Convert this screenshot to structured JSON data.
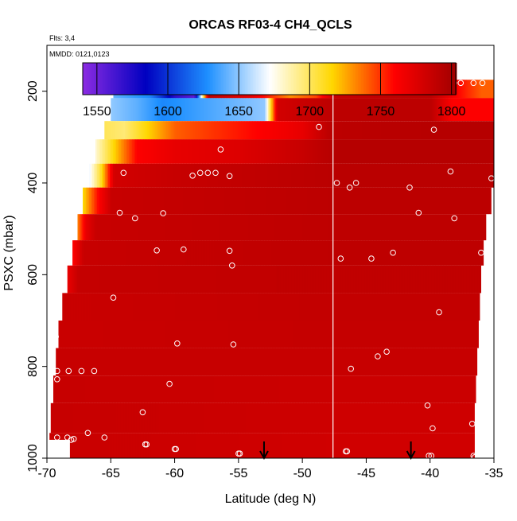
{
  "chart_data": {
    "type": "heatmap",
    "title": "ORCAS RF03-4 CH4_QCLS",
    "info_flts": "Flts: 3,4",
    "info_mmdd": "MMDD: 0121,0123",
    "xlabel": "Latitude (deg N)",
    "ylabel": "PSXC (mbar)",
    "xlim": [
      -70,
      -35
    ],
    "ylim": [
      1000,
      100
    ],
    "x_ticks": [
      -70,
      -65,
      -60,
      -55,
      -50,
      -45,
      -40,
      -35
    ],
    "x_tick_labels": [
      "-70",
      "-65",
      "-60",
      "-55",
      "-50",
      "-45",
      "-40",
      "-35"
    ],
    "y_ticks": [
      200,
      400,
      600,
      800,
      1000
    ],
    "y_tick_labels": [
      "200",
      "400",
      "600",
      "800",
      "1000"
    ],
    "colorbar": {
      "range": [
        1540,
        1803
      ],
      "ticks": [
        1550,
        1600,
        1650,
        1700,
        1750,
        1800
      ],
      "tick_labels": [
        "1550",
        "1600",
        "1650",
        "1700",
        "1750",
        "1800"
      ],
      "colors": [
        "#8a2be2",
        "#0000c0",
        "#1e90ff",
        "#ffffff",
        "#ffd700",
        "#ff0000",
        "#a00000"
      ]
    },
    "layers": [
      {
        "p_top": 175,
        "p_bot": 215,
        "x_start": -64.8,
        "x_end": -35,
        "segments": [
          [
            -64.8,
            1640
          ],
          [
            -62,
            1625
          ],
          [
            -60,
            1570
          ],
          [
            -58.5,
            1555
          ],
          [
            -57.4,
            1790
          ],
          [
            -54,
            1770
          ],
          [
            -51,
            1730
          ],
          [
            -49,
            1745
          ],
          [
            -47.6,
            1785
          ],
          [
            -40,
            1790
          ],
          [
            -38,
            1760
          ],
          [
            -36,
            1740
          ]
        ]
      },
      {
        "p_top": 215,
        "p_bot": 265,
        "x_start": -65,
        "x_end": -35,
        "segments": [
          [
            -65,
            1650
          ],
          [
            -63,
            1640
          ],
          [
            -61,
            1625
          ],
          [
            -53,
            1650
          ],
          [
            -52,
            1780
          ],
          [
            -47.6,
            1790
          ],
          [
            -40,
            1790
          ],
          [
            -38.3,
            1760
          ]
        ]
      },
      {
        "p_top": 265,
        "p_bot": 305,
        "x_start": -65.5,
        "x_end": -35,
        "segments": [
          [
            -65.5,
            1700
          ],
          [
            -64,
            1695
          ],
          [
            -60,
            1740
          ],
          [
            -50,
            1770
          ],
          [
            -48,
            1790
          ],
          [
            -38,
            1793
          ]
        ]
      },
      {
        "p_top": 305,
        "p_bot": 358,
        "x_start": -66.2,
        "x_end": -35,
        "segments": [
          [
            -66.2,
            1680
          ],
          [
            -65,
            1710
          ],
          [
            -63,
            1760
          ],
          [
            -60,
            1770
          ],
          [
            -55,
            1775
          ],
          [
            -50,
            1785
          ],
          [
            -47.6,
            1793
          ]
        ]
      },
      {
        "p_top": 358,
        "p_bot": 410,
        "x_start": -66.7,
        "x_end": -35,
        "segments": [
          [
            -66.7,
            1670
          ],
          [
            -65.8,
            1710
          ],
          [
            -64.8,
            1780
          ],
          [
            -60,
            1785
          ],
          [
            -47.6,
            1791
          ]
        ]
      },
      {
        "p_top": 410,
        "p_bot": 468,
        "x_start": -67.2,
        "x_end": -35.2,
        "segments": [
          [
            -67.2,
            1715
          ],
          [
            -66,
            1760
          ],
          [
            -65,
            1785
          ],
          [
            -47.6,
            1790
          ]
        ]
      },
      {
        "p_top": 468,
        "p_bot": 525,
        "x_start": -67.6,
        "x_end": -35.6,
        "segments": [
          [
            -67.6,
            1735
          ],
          [
            -67,
            1770
          ],
          [
            -66.2,
            1785
          ],
          [
            -47.6,
            1789
          ]
        ]
      },
      {
        "p_top": 525,
        "p_bot": 580,
        "x_start": -68.0,
        "x_end": -35.8,
        "segments": [
          [
            -68,
            1760
          ],
          [
            -67.2,
            1785
          ],
          [
            -47.6,
            1789
          ]
        ]
      },
      {
        "p_top": 580,
        "p_bot": 640,
        "x_start": -68.4,
        "x_end": -36.0,
        "segments": [
          [
            -68.4,
            1770
          ],
          [
            -67.6,
            1786
          ],
          [
            -47.6,
            1788
          ]
        ]
      },
      {
        "p_top": 640,
        "p_bot": 700,
        "x_start": -68.8,
        "x_end": -36.1,
        "segments": [
          [
            -68.8,
            1784
          ],
          [
            -47.6,
            1787
          ]
        ]
      },
      {
        "p_top": 700,
        "p_bot": 760,
        "x_start": -69.1,
        "x_end": -36.2,
        "segments": [
          [
            -69.1,
            1784
          ],
          [
            -47.6,
            1786
          ]
        ]
      },
      {
        "p_top": 760,
        "p_bot": 820,
        "x_start": -69.3,
        "x_end": -36.3,
        "segments": [
          [
            -69.3,
            1785
          ],
          [
            -47.6,
            1785
          ]
        ]
      },
      {
        "p_top": 820,
        "p_bot": 880,
        "x_start": -69.5,
        "x_end": -36.4,
        "segments": [
          [
            -69.5,
            1785
          ],
          [
            -47.6,
            1783
          ]
        ]
      },
      {
        "p_top": 880,
        "p_bot": 945,
        "x_start": -69.7,
        "x_end": -36.5,
        "segments": [
          [
            -69.7,
            1785
          ],
          [
            -47.6,
            1782
          ]
        ]
      },
      {
        "p_top": 945,
        "p_bot": 1000,
        "x_start": -69.8,
        "x_end": -36.5,
        "segments": [
          [
            -69.8,
            1784
          ],
          [
            -47.6,
            1781
          ]
        ]
      }
    ],
    "blank_patches": [
      {
        "x0": -70,
        "x1": -68.2,
        "p_top": 960,
        "p_bot": 1000
      }
    ],
    "divider_lat": -47.6,
    "points": [
      [
        -64.5,
        180
      ],
      [
        -61.8,
        182
      ],
      [
        -60.6,
        182
      ],
      [
        -59.8,
        186
      ],
      [
        -57.8,
        182
      ],
      [
        -56.9,
        184
      ],
      [
        -50.7,
        182
      ],
      [
        -49.1,
        182
      ],
      [
        -48.6,
        185
      ],
      [
        -38.8,
        190
      ],
      [
        -38.1,
        182
      ],
      [
        -37.6,
        182
      ],
      [
        -36.6,
        182
      ],
      [
        -35.9,
        182
      ],
      [
        -48.7,
        278
      ],
      [
        -39.7,
        284
      ],
      [
        -56.4,
        327
      ],
      [
        -64.0,
        378
      ],
      [
        -58.6,
        384
      ],
      [
        -58.0,
        378
      ],
      [
        -57.4,
        378
      ],
      [
        -56.8,
        378
      ],
      [
        -55.7,
        385
      ],
      [
        -47.3,
        400
      ],
      [
        -45.8,
        400
      ],
      [
        -46.3,
        410
      ],
      [
        -41.6,
        410
      ],
      [
        -38.4,
        375
      ],
      [
        -35.2,
        390
      ],
      [
        -64.3,
        465
      ],
      [
        -63.1,
        477
      ],
      [
        -60.9,
        466
      ],
      [
        -40.9,
        465
      ],
      [
        -38.1,
        477
      ],
      [
        -61.4,
        547
      ],
      [
        -59.3,
        545
      ],
      [
        -55.7,
        548
      ],
      [
        -55.5,
        580
      ],
      [
        -47.0,
        565
      ],
      [
        -44.6,
        565
      ],
      [
        -42.9,
        552
      ],
      [
        -36.0,
        552
      ],
      [
        -64.8,
        650
      ],
      [
        -39.3,
        682
      ],
      [
        -69.3,
        735
      ],
      [
        -59.8,
        750
      ],
      [
        -55.4,
        752
      ],
      [
        -44.1,
        778
      ],
      [
        -43.4,
        768
      ],
      [
        -69.2,
        810
      ],
      [
        -69.2,
        828
      ],
      [
        -68.3,
        810
      ],
      [
        -67.3,
        810
      ],
      [
        -66.3,
        810
      ],
      [
        -60.4,
        838
      ],
      [
        -46.2,
        805
      ],
      [
        -62.5,
        900
      ],
      [
        -40.2,
        885
      ],
      [
        -69.2,
        955
      ],
      [
        -68.4,
        955
      ],
      [
        -68.1,
        960
      ],
      [
        -67.9,
        958
      ],
      [
        -66.8,
        945
      ],
      [
        -65.5,
        955
      ],
      [
        -62.3,
        970
      ],
      [
        -62.2,
        970
      ],
      [
        -60.0,
        980
      ],
      [
        -59.9,
        980
      ],
      [
        -55.0,
        990
      ],
      [
        -54.9,
        990
      ],
      [
        -46.6,
        985
      ],
      [
        -46.5,
        985
      ],
      [
        -39.8,
        935
      ],
      [
        -40.1,
        995
      ],
      [
        -39.9,
        995
      ],
      [
        -36.7,
        925
      ],
      [
        -36.6,
        995
      ],
      [
        -36.5,
        998
      ],
      [
        -35.3,
        1000
      ]
    ],
    "arrows": [
      -53.0,
      -41.5
    ],
    "grid": false,
    "legend_position": "top (colorbar)"
  }
}
